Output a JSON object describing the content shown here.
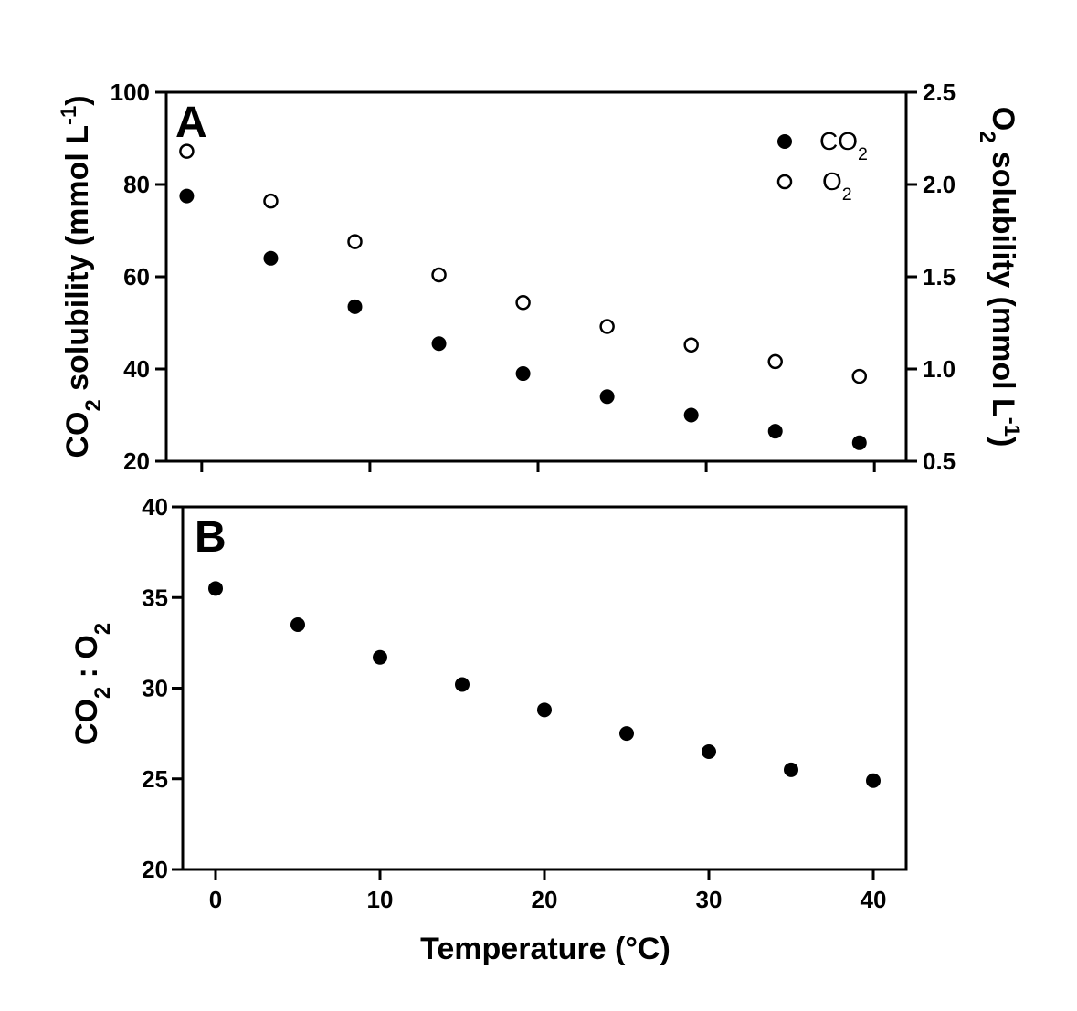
{
  "chart_data": [
    {
      "panel": "A",
      "type": "scatter",
      "xlim": [
        -2,
        42
      ],
      "x_ticks": [
        0,
        10,
        20,
        30,
        40
      ],
      "y_left": {
        "label_parts": [
          "CO",
          "2",
          " solubility  (mmol L",
          "-1",
          ")"
        ],
        "lim": [
          20,
          100
        ],
        "ticks": [
          20,
          40,
          60,
          80,
          100
        ],
        "tick_labels": [
          "20",
          "40",
          "60",
          "80",
          "100"
        ]
      },
      "y_right": {
        "label_parts": [
          "O",
          "2",
          " solubility  (mmol L",
          "-1",
          ")"
        ],
        "lim": [
          0.5,
          2.5
        ],
        "ticks": [
          0.5,
          1.0,
          1.5,
          2.0,
          2.5
        ],
        "tick_labels": [
          "0.5",
          "1.0",
          "1.5",
          "2.0",
          "2.5"
        ]
      },
      "legend": {
        "placement": "top-right",
        "entries": [
          {
            "base": "CO",
            "sub": "2",
            "marker": "filled-circle"
          },
          {
            "base": "O",
            "sub": "2",
            "marker": "open-circle"
          }
        ]
      },
      "series": [
        {
          "name": "CO2",
          "axis": "left",
          "marker": "filled-circle",
          "x": [
            -1,
            4,
            9,
            14,
            19,
            24,
            29,
            34,
            39
          ],
          "y": [
            77.5,
            64.0,
            53.5,
            45.5,
            39.0,
            34.0,
            30.0,
            26.5,
            24.0
          ]
        },
        {
          "name": "O2",
          "axis": "right",
          "marker": "open-circle",
          "x": [
            -1,
            4,
            9,
            14,
            19,
            24,
            29,
            34,
            39
          ],
          "y": [
            2.18,
            1.91,
            1.69,
            1.51,
            1.36,
            1.23,
            1.13,
            1.04,
            0.96
          ]
        }
      ]
    },
    {
      "panel": "B",
      "type": "scatter",
      "xlim": [
        -2,
        42
      ],
      "x_ticks": [
        0,
        10,
        20,
        30,
        40
      ],
      "x_tick_labels": [
        "0",
        "10",
        "20",
        "30",
        "40"
      ],
      "xlabel": "Temperature (°C)",
      "y_left": {
        "label_parts": [
          "CO",
          "2",
          " : O",
          "2",
          ""
        ],
        "lim": [
          20,
          40
        ],
        "ticks": [
          20,
          25,
          30,
          35,
          40
        ],
        "tick_labels": [
          "20",
          "25",
          "30",
          "35",
          "40"
        ]
      },
      "series": [
        {
          "marker": "filled-circle",
          "x": [
            0,
            5,
            10,
            15,
            20,
            25,
            30,
            35,
            40
          ],
          "y": [
            35.5,
            33.5,
            31.7,
            30.2,
            28.8,
            27.5,
            26.5,
            25.5,
            24.9
          ]
        }
      ]
    }
  ]
}
